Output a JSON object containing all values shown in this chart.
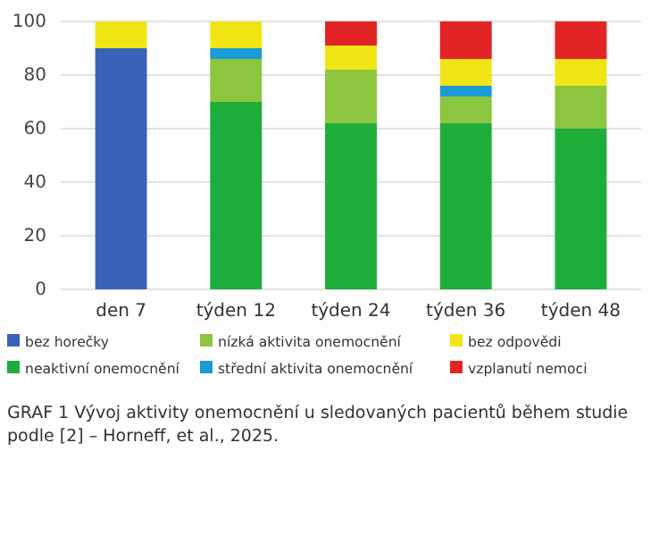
{
  "chart_data": {
    "type": "bar",
    "stacked": true,
    "categories": [
      "den 7",
      "týden 12",
      "týden 24",
      "týden 36",
      "týden 48"
    ],
    "series": [
      {
        "name": "bez horečky",
        "color": "#3a62b8",
        "values": [
          90,
          0,
          0,
          0,
          0
        ]
      },
      {
        "name": "neaktivní onemocnění",
        "color": "#1fae3c",
        "values": [
          0,
          70,
          62,
          62,
          60
        ]
      },
      {
        "name": "nízká aktivita onemocnění",
        "color": "#8cc63f",
        "values": [
          0,
          16,
          20,
          10,
          16
        ]
      },
      {
        "name": "střední aktivita onemocnění",
        "color": "#1a9ad6",
        "values": [
          0,
          4,
          0,
          4,
          0
        ]
      },
      {
        "name": "bez odpovědi",
        "color": "#f2e516",
        "values": [
          10,
          10,
          9,
          10,
          10
        ]
      },
      {
        "name": "vzplanutí nemoci",
        "color": "#e32424",
        "values": [
          0,
          0,
          9,
          14,
          14
        ]
      }
    ],
    "ylim": [
      0,
      100
    ],
    "yticks": [
      0,
      20,
      40,
      60,
      80,
      100
    ],
    "grid": "y",
    "legend": "bottom",
    "annotations": [
      "GRAF 1 Vývoj aktivity onemocnění u sledovaných pacientů během studie podle [2] – Horneff, et al., 2025."
    ]
  }
}
